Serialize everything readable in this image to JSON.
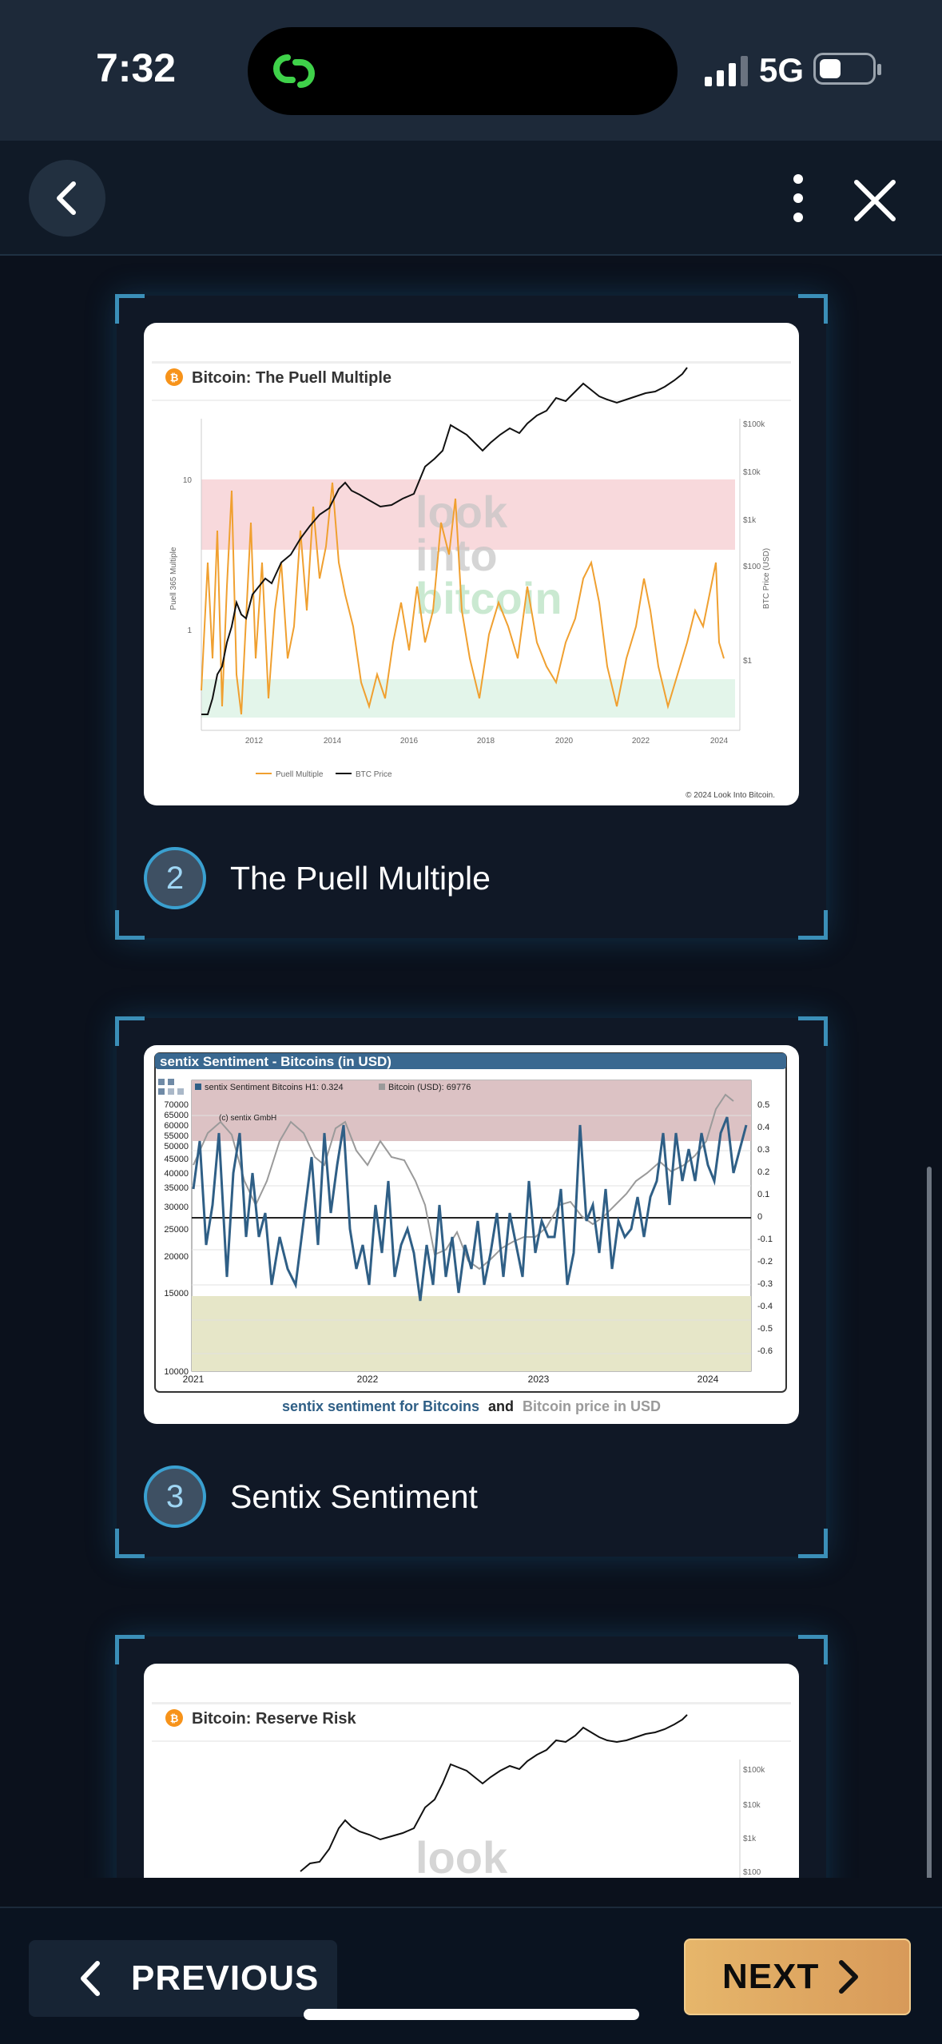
{
  "status_bar": {
    "time": "7:32",
    "network": "5G"
  },
  "cards": [
    {
      "number": "2",
      "title": "The Puell Multiple",
      "chart": {
        "header": "Bitcoin: The Puell Multiple",
        "watermark": [
          "look",
          "into",
          "bitcoin"
        ],
        "y_left_label": "Puell 365 Multiple",
        "y_left_ticks": [
          "10",
          "1"
        ],
        "y_right_label": "BTC Price (USD)",
        "y_right_ticks": [
          "$100k",
          "$10k",
          "$1k",
          "$100",
          "$1"
        ],
        "x_ticks": [
          "2012",
          "2014",
          "2016",
          "2018",
          "2020",
          "2022",
          "2024"
        ],
        "legend": [
          "Puell Multiple",
          "BTC Price"
        ],
        "copyright": "© 2024 Look Into Bitcoin."
      }
    },
    {
      "number": "3",
      "title": "Sentix Sentiment",
      "chart": {
        "header": "sentix Sentiment - Bitcoins (in USD)",
        "legend": [
          "sentix Sentiment Bitcoins H1: 0.324",
          "Bitcoin (USD): 69776"
        ],
        "copyright": "(c) sentix GmbH",
        "y_left_ticks": [
          "70000",
          "65000",
          "60000",
          "55000",
          "50000",
          "45000",
          "40000",
          "35000",
          "30000",
          "25000",
          "20000",
          "15000",
          "10000"
        ],
        "y_right_ticks": [
          "0.5",
          "0.4",
          "0.3",
          "0.2",
          "0.1",
          "0",
          "-0.1",
          "-0.2",
          "-0.3",
          "-0.4",
          "-0.5",
          "-0.6"
        ],
        "x_ticks": [
          "2021",
          "2022",
          "2023",
          "2024"
        ],
        "caption_blue": "sentix sentiment for Bitcoins",
        "caption_and": "and",
        "caption_gray": "Bitcoin price in USD"
      }
    },
    {
      "chart": {
        "header": "Bitcoin: Reserve Risk",
        "watermark": [
          "look"
        ],
        "y_right_ticks": [
          "$100k",
          "$10k",
          "$1k",
          "$100"
        ]
      }
    }
  ],
  "nav": {
    "previous_label": "PREVIOUS",
    "next_label": "NEXT"
  },
  "colors": {
    "accent": "#3aa0d0",
    "next_button": "#e0a862",
    "puell_line": "#f0a030",
    "sentix_blue": "#2f5f86",
    "btc_gray": "#9a9a9a"
  },
  "icons": [
    "link-icon",
    "signal-icon",
    "battery-icon",
    "back-chevron-icon",
    "more-vertical-icon",
    "close-icon",
    "bitcoin-icon",
    "chevron-left-icon",
    "chevron-right-icon"
  ]
}
